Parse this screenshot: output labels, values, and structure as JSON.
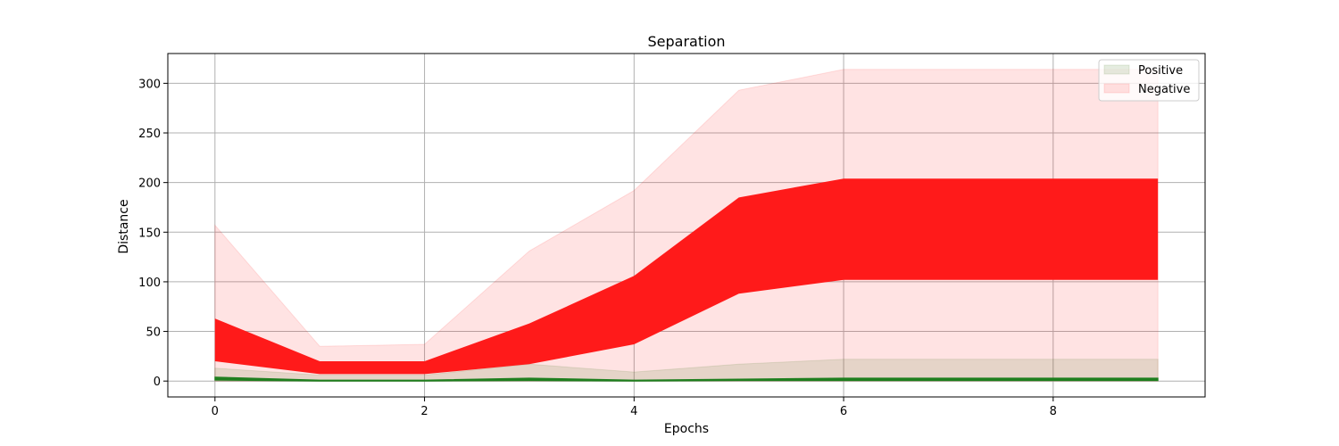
{
  "chart_data": {
    "type": "area",
    "title": "Separation",
    "xlabel": "Epochs",
    "ylabel": "Distance",
    "xlim": [
      -0.45,
      9.45
    ],
    "ylim": [
      -16,
      330
    ],
    "xticks": [
      0,
      2,
      4,
      6,
      8
    ],
    "yticks": [
      0,
      50,
      100,
      150,
      200,
      250,
      300
    ],
    "grid": true,
    "legend_position": "top-right",
    "x": [
      0,
      1,
      2,
      3,
      4,
      5,
      6,
      7,
      8,
      9
    ],
    "series": [
      {
        "name": "Positive",
        "color": "#1f7f1f",
        "band_outer": {
          "lower": [
            0,
            0,
            0,
            0,
            0,
            0,
            0,
            0,
            0,
            0
          ],
          "upper": [
            13,
            6,
            6,
            17,
            9,
            17,
            22,
            22,
            22,
            22
          ]
        },
        "band_inner": {
          "lower": [
            1,
            0,
            0,
            0.5,
            0,
            0.5,
            0.5,
            0.5,
            0.5,
            0.5
          ],
          "upper": [
            4,
            1,
            1,
            3,
            1,
            2,
            3,
            3,
            3,
            3
          ]
        }
      },
      {
        "name": "Negative",
        "color": "#ff1a1a",
        "band_outer": {
          "lower": [
            0,
            0,
            0,
            0,
            0,
            0,
            0,
            0,
            0,
            0
          ],
          "upper": [
            157,
            35,
            37,
            131,
            192,
            293,
            314,
            314,
            314,
            314
          ]
        },
        "band_inner": {
          "lower": [
            20,
            7,
            7,
            17,
            37,
            88,
            102,
            102,
            102,
            102
          ],
          "upper": [
            63,
            20,
            20,
            58,
            106,
            185,
            204,
            204,
            204,
            204
          ]
        }
      }
    ]
  }
}
